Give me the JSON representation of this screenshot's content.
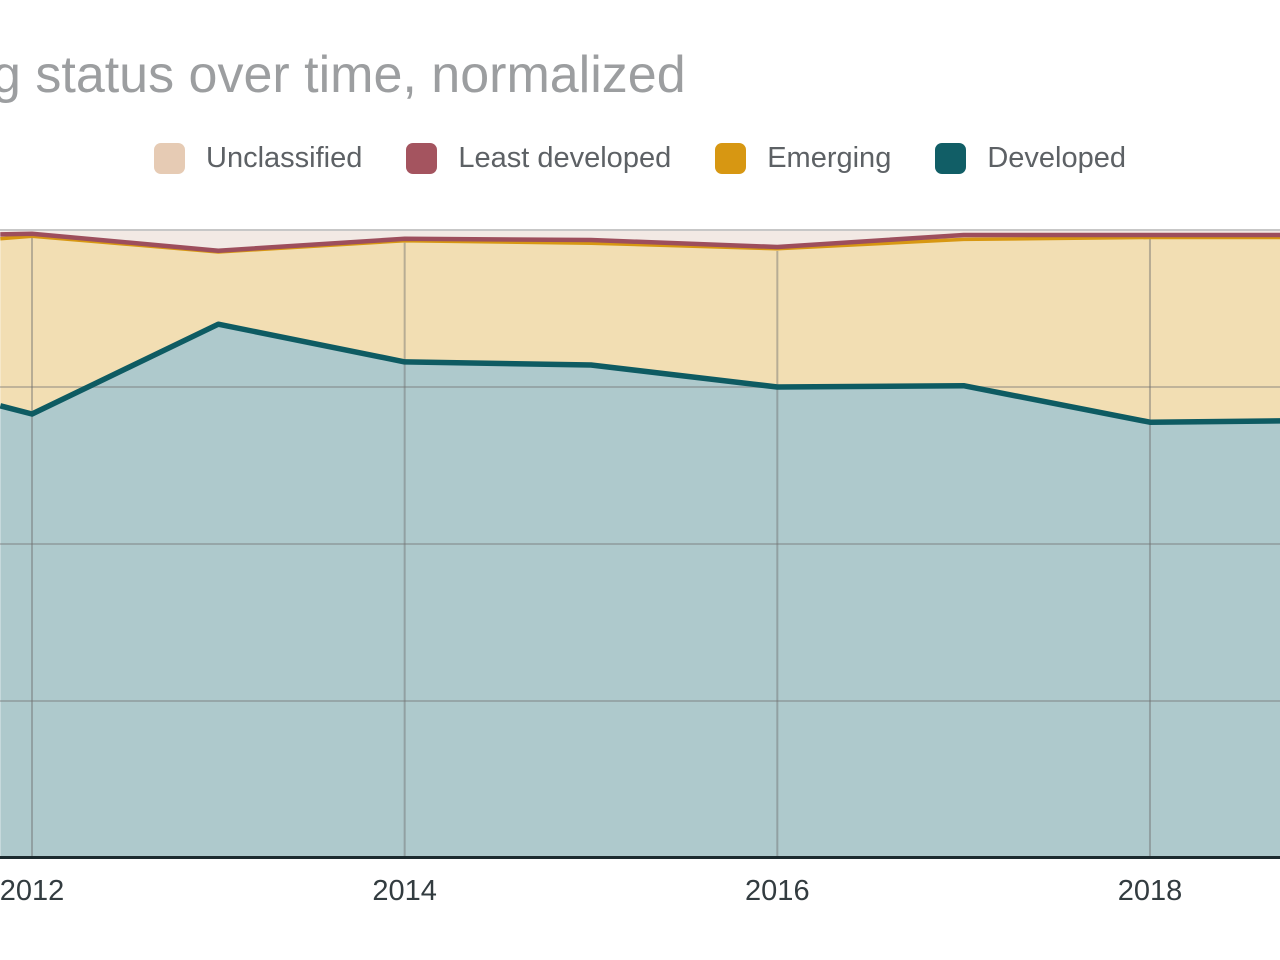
{
  "header": {
    "title": "g status over time, normalized"
  },
  "legend": {
    "items": [
      {
        "label": "Unclassified",
        "color": "#e6cbb4"
      },
      {
        "label": "Least developed",
        "color": "#a4545f"
      },
      {
        "label": "Emerging",
        "color": "#d79712"
      },
      {
        "label": "Developed",
        "color": "#115e66"
      }
    ]
  },
  "chart_data": {
    "type": "area",
    "stacked": true,
    "normalized": true,
    "stack_order": "bottom-to-top",
    "title": "g status over time, normalized",
    "unit": "percent",
    "ylim": [
      0,
      100
    ],
    "y_gridlines_pct": [
      25,
      50,
      75,
      100
    ],
    "x": [
      2011.83,
      2012,
      2013,
      2014,
      2015,
      2016,
      2017,
      2018,
      2018.7
    ],
    "x_ticks": [
      {
        "year": 2012,
        "label": "2012"
      },
      {
        "year": 2014,
        "label": "2014"
      },
      {
        "year": 2016,
        "label": "2016"
      },
      {
        "year": 2018,
        "label": "2018"
      }
    ],
    "series": [
      {
        "name": "Developed",
        "values": [
          72.0,
          70.7,
          85.0,
          79.0,
          78.5,
          75.0,
          75.2,
          69.4,
          69.6
        ],
        "line_color": "#0e5b62",
        "fill_color": "#aec9cc",
        "line_width": 5.5
      },
      {
        "name": "Emerging",
        "values": [
          26.6,
          28.3,
          11.5,
          19.3,
          19.4,
          22.0,
          23.3,
          29.4,
          29.2
        ],
        "line_color": "#d79712",
        "fill_color": "#f2deb3",
        "line_width": 3.5
      },
      {
        "name": "Least developed",
        "values": [
          0.7,
          0.4,
          0.2,
          0.3,
          0.5,
          0.3,
          0.7,
          0.4,
          0.4
        ],
        "line_color": "#9d4e5c",
        "fill_color": "#e4ced2",
        "line_width": 4.5
      },
      {
        "name": "Unclassified",
        "values": [
          0.7,
          0.6,
          3.3,
          1.4,
          1.6,
          2.7,
          0.8,
          0.8,
          0.8
        ],
        "line_color": null,
        "fill_color": "#f2e9e4",
        "line_width": 0
      }
    ]
  }
}
